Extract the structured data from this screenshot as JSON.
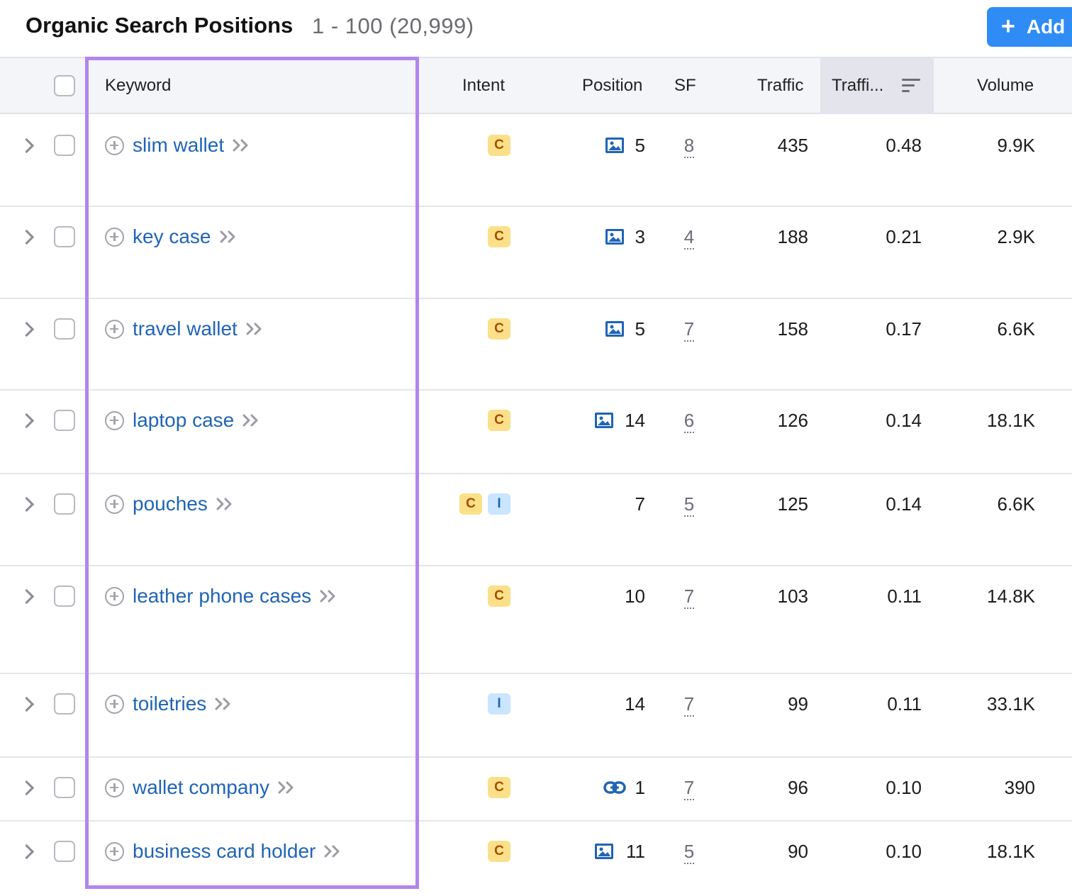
{
  "header": {
    "title": "Organic Search Positions",
    "range": "1 - 100 (20,999)",
    "add_label": "Add"
  },
  "columns": {
    "keyword": "Keyword",
    "intent": "Intent",
    "position": "Position",
    "sf": "SF",
    "traffic": "Traffic",
    "traffic_pct": "Traffi...",
    "volume": "Volume"
  },
  "rows": [
    {
      "keyword": "slim wallet",
      "intents": [
        "C"
      ],
      "serp_feature": "image-icon",
      "position": "5",
      "sf": "8",
      "traffic": "435",
      "traffic_pct": "0.48",
      "volume": "9.9K"
    },
    {
      "keyword": "key case",
      "intents": [
        "C"
      ],
      "serp_feature": "image-icon",
      "position": "3",
      "sf": "4",
      "traffic": "188",
      "traffic_pct": "0.21",
      "volume": "2.9K"
    },
    {
      "keyword": "travel wallet",
      "intents": [
        "C"
      ],
      "serp_feature": "image-icon",
      "position": "5",
      "sf": "7",
      "traffic": "158",
      "traffic_pct": "0.17",
      "volume": "6.6K"
    },
    {
      "keyword": "laptop case",
      "intents": [
        "C"
      ],
      "serp_feature": "image-icon",
      "position": "14",
      "sf": "6",
      "traffic": "126",
      "traffic_pct": "0.14",
      "volume": "18.1K"
    },
    {
      "keyword": "pouches",
      "intents": [
        "C",
        "I"
      ],
      "serp_feature": "",
      "position": "7",
      "sf": "5",
      "traffic": "125",
      "traffic_pct": "0.14",
      "volume": "6.6K"
    },
    {
      "keyword": "leather phone cases",
      "intents": [
        "C"
      ],
      "serp_feature": "",
      "position": "10",
      "sf": "7",
      "traffic": "103",
      "traffic_pct": "0.11",
      "volume": "14.8K"
    },
    {
      "keyword": "toiletries",
      "intents": [
        "I"
      ],
      "serp_feature": "",
      "position": "14",
      "sf": "7",
      "traffic": "99",
      "traffic_pct": "0.11",
      "volume": "33.1K"
    },
    {
      "keyword": "wallet company",
      "intents": [
        "C"
      ],
      "serp_feature": "link-icon",
      "position": "1",
      "sf": "7",
      "traffic": "96",
      "traffic_pct": "0.10",
      "volume": "390"
    },
    {
      "keyword": "business card holder",
      "intents": [
        "C"
      ],
      "serp_feature": "image-icon",
      "position": "11",
      "sf": "5",
      "traffic": "90",
      "traffic_pct": "0.10",
      "volume": "18.1K"
    }
  ],
  "colors": {
    "accent": "#2f8cf5",
    "link": "#1f64b7",
    "highlight": "#b185ee",
    "intent_commercial": "#fbe089",
    "intent_informational": "#c9e5ff"
  }
}
